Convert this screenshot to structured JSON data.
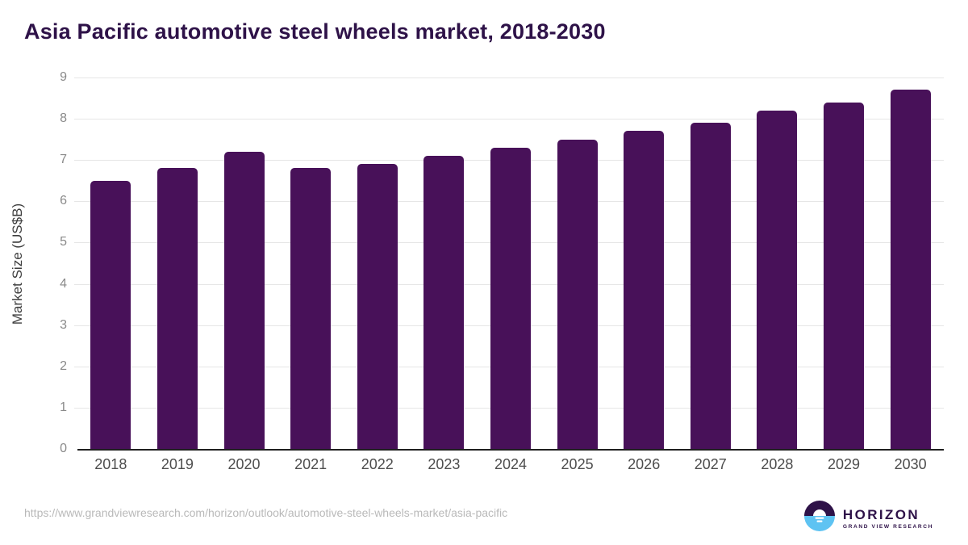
{
  "title": "Asia Pacific automotive steel wheels market, 2018-2030",
  "chart_data": {
    "type": "bar",
    "title": "Asia Pacific automotive steel wheels market, 2018-2030",
    "categories": [
      "2018",
      "2019",
      "2020",
      "2021",
      "2022",
      "2023",
      "2024",
      "2025",
      "2026",
      "2027",
      "2028",
      "2029",
      "2030"
    ],
    "values": [
      6.5,
      6.8,
      7.2,
      6.8,
      6.9,
      7.1,
      7.3,
      7.5,
      7.7,
      7.9,
      8.2,
      8.4,
      8.7
    ],
    "xlabel": "",
    "ylabel": "Market Size (US$B)",
    "ylim": [
      0,
      9
    ],
    "yticks": [
      0,
      1,
      2,
      3,
      4,
      5,
      6,
      7,
      8,
      9
    ],
    "grid": true,
    "legend": "none",
    "bar_color": "#481159"
  },
  "colors": {
    "bar": "#481159",
    "title_text": "#2e1248",
    "gridline": "#e6e6e6",
    "axis_line": "#1f1f1f",
    "y_tick_text": "#8a8a8a",
    "x_tick_text": "#4d4d4d",
    "url_text": "#b9b9b9",
    "logo_purple": "#2e1248",
    "logo_blue": "#5ec3f2"
  },
  "footer": {
    "source_url": "https://www.grandviewresearch.com/horizon/outlook/automotive-steel-wheels-market/asia-pacific",
    "logo": {
      "name": "HORIZON",
      "subtitle": "GRAND VIEW RESEARCH"
    }
  }
}
